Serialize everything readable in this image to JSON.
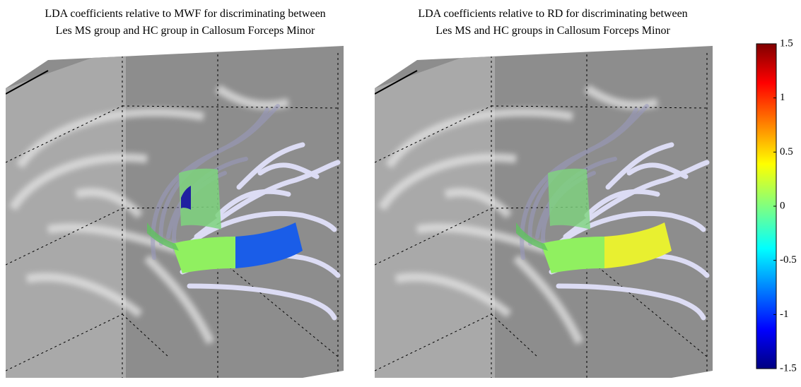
{
  "panels": [
    {
      "title_lines": [
        "LDA coefficients relative to MWF for discriminating between",
        "Les MS group and HC group in Callosum Forceps Minor"
      ]
    },
    {
      "title_lines": [
        "LDA coefficients relative to RD for discriminating between",
        "Les MS and HC groups in Callosum Forceps Minor"
      ]
    }
  ],
  "colorbar": {
    "lim": [
      -1.5,
      1.5
    ],
    "ticks": [
      1.5,
      1,
      0.5,
      0,
      -0.5,
      -1,
      -1.5
    ]
  }
}
